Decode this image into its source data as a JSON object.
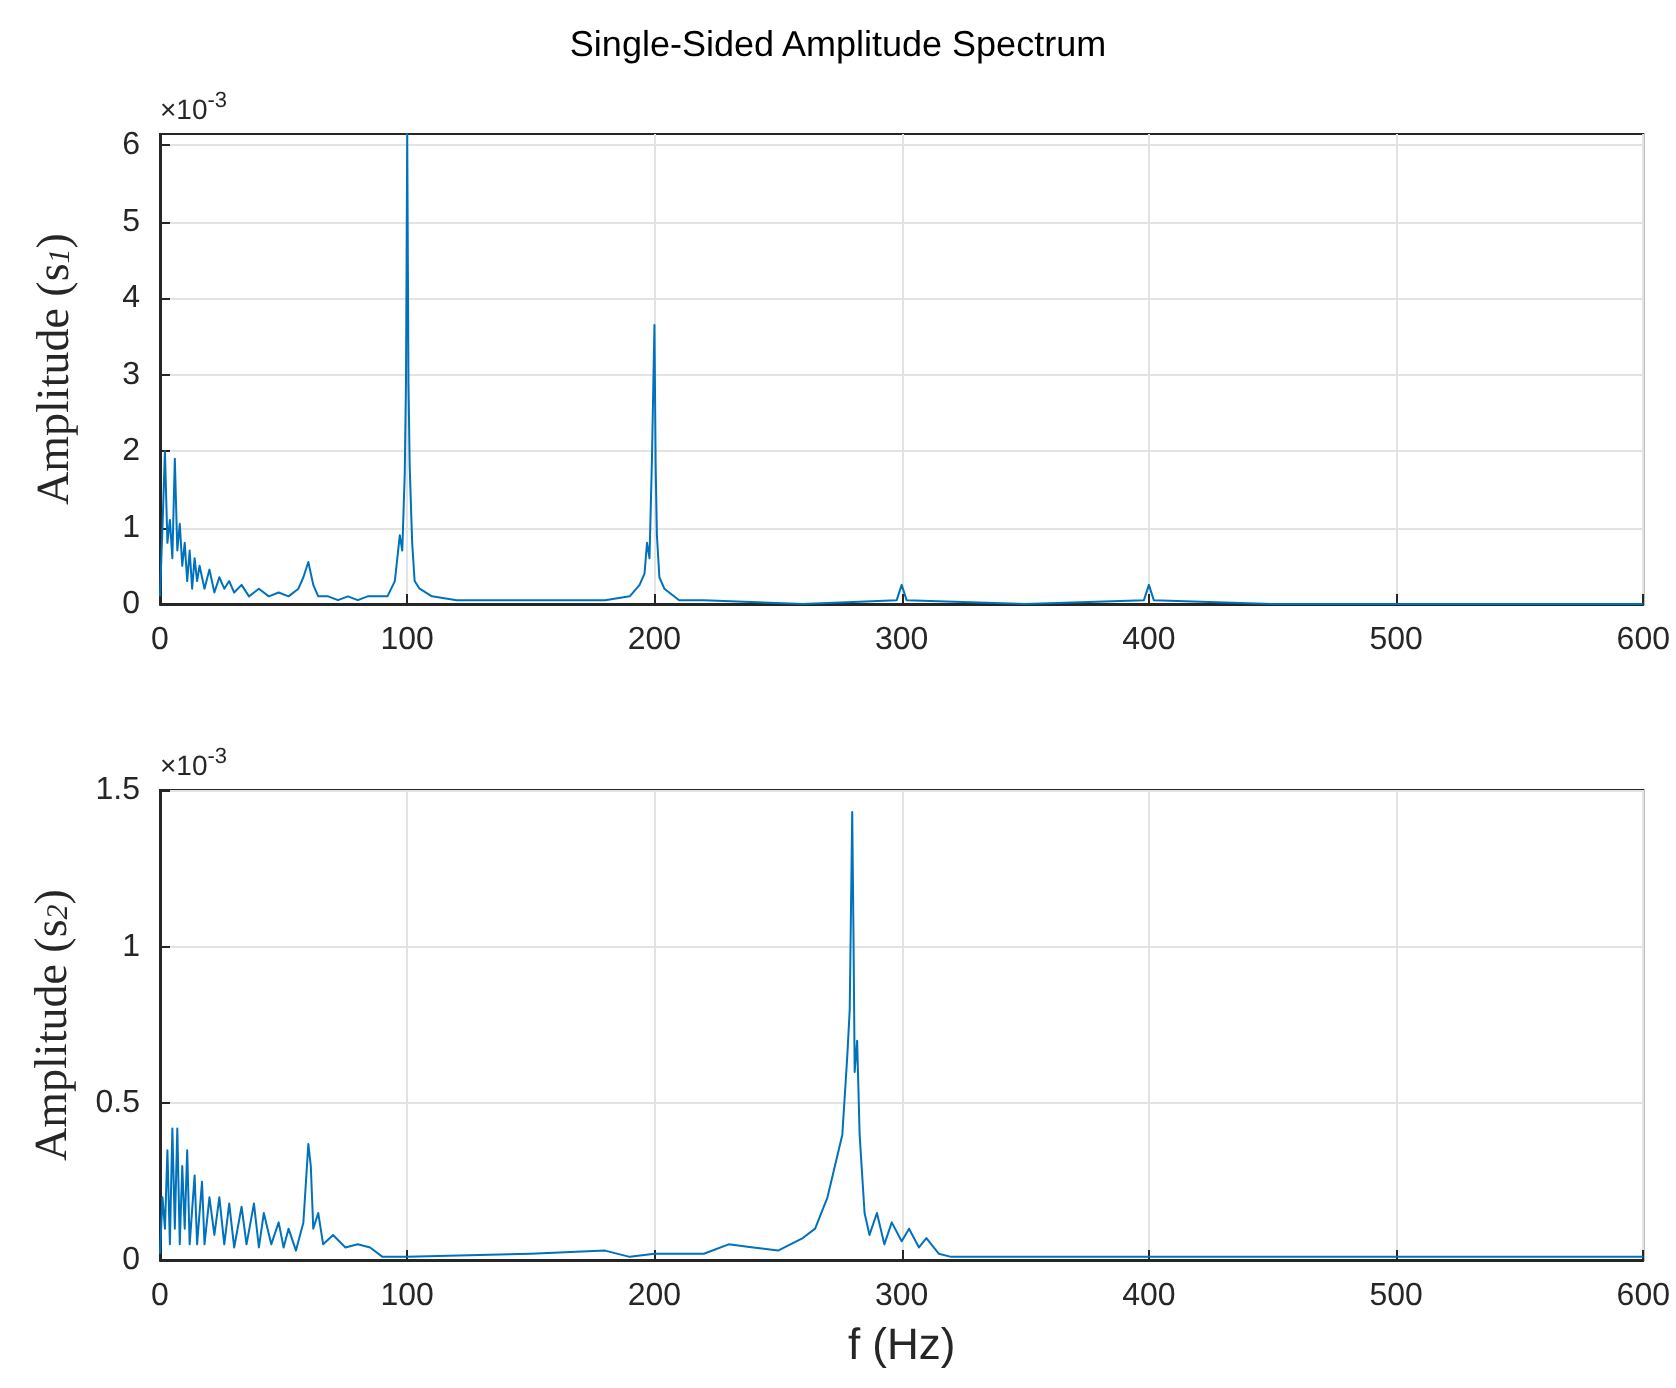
{
  "chart_data": [
    {
      "type": "line",
      "title": "Single-Sided Amplitude Spectrum",
      "ylabel": "Amplitude (s$_{1}$)",
      "annotations": [
        "×10$^{-3}$"
      ],
      "grid": true,
      "marker": "none",
      "line_style": "solid",
      "xlim": [
        0,
        600
      ],
      "xticks": [
        0,
        100,
        200,
        300,
        400,
        500,
        600
      ],
      "ylim": [
        0,
        6.15
      ],
      "yticks": [
        0,
        1,
        2,
        3,
        4,
        5,
        6
      ],
      "series": [
        {
          "color": "#0072bd",
          "x": [
            0,
            1,
            2,
            3,
            4,
            5,
            6,
            7,
            8,
            9,
            10,
            11,
            12,
            13,
            14,
            15,
            16,
            18,
            20,
            22,
            24,
            26,
            28,
            30,
            33,
            36,
            40,
            44,
            48,
            52,
            56,
            58,
            60,
            62,
            64,
            68,
            72,
            76,
            80,
            84,
            88,
            92,
            95,
            97,
            98,
            99,
            99.5,
            100,
            100.5,
            101,
            102,
            103,
            105,
            110,
            120,
            140,
            160,
            180,
            190,
            194,
            196,
            197,
            198,
            199,
            200,
            200.5,
            201,
            202,
            204,
            210,
            220,
            260,
            298,
            300,
            302,
            350,
            398,
            400,
            402,
            450,
            500,
            600
          ],
          "values": [
            0.1,
            1.0,
            2.0,
            0.8,
            1.1,
            0.6,
            1.9,
            0.7,
            1.05,
            0.5,
            0.8,
            0.3,
            0.7,
            0.2,
            0.6,
            0.3,
            0.5,
            0.2,
            0.45,
            0.15,
            0.35,
            0.2,
            0.3,
            0.15,
            0.25,
            0.1,
            0.2,
            0.1,
            0.15,
            0.1,
            0.2,
            0.35,
            0.55,
            0.25,
            0.1,
            0.1,
            0.05,
            0.1,
            0.05,
            0.1,
            0.1,
            0.1,
            0.3,
            0.9,
            0.7,
            1.7,
            2.9,
            6.15,
            2.9,
            1.8,
            0.8,
            0.3,
            0.2,
            0.1,
            0.05,
            0.05,
            0.05,
            0.05,
            0.1,
            0.25,
            0.4,
            0.8,
            0.6,
            1.9,
            3.65,
            1.8,
            0.9,
            0.35,
            0.2,
            0.05,
            0.05,
            0.0,
            0.05,
            0.25,
            0.05,
            0.0,
            0.05,
            0.25,
            0.05,
            0.0,
            0.0,
            0.0
          ]
        }
      ]
    },
    {
      "type": "line",
      "xlabel": "f (Hz)",
      "ylabel": "Amplitude (s$_{2}$)",
      "annotations": [
        "×10$^{-3}$"
      ],
      "grid": true,
      "marker": "none",
      "line_style": "solid",
      "xlim": [
        0,
        600
      ],
      "xticks": [
        0,
        100,
        200,
        300,
        400,
        500,
        600
      ],
      "ylim": [
        0,
        1.5
      ],
      "yticks": [
        0,
        0.5,
        1,
        1.5
      ],
      "series": [
        {
          "color": "#0072bd",
          "x": [
            0,
            1,
            2,
            3,
            4,
            5,
            6,
            7,
            8,
            9,
            10,
            11,
            12,
            14,
            15,
            17,
            18,
            20,
            22,
            24,
            26,
            28,
            30,
            33,
            35,
            38,
            40,
            42,
            45,
            48,
            50,
            52,
            55,
            58,
            60,
            61,
            62,
            64,
            66,
            70,
            75,
            80,
            85,
            90,
            100,
            150,
            180,
            190,
            200,
            220,
            230,
            240,
            250,
            260,
            265,
            270,
            273,
            276,
            278,
            279,
            280,
            280.5,
            281,
            282,
            283,
            285,
            287,
            290,
            293,
            296,
            300,
            303,
            307,
            310,
            315,
            320,
            400,
            500,
            560,
            600
          ],
          "values": [
            0.02,
            0.2,
            0.1,
            0.35,
            0.05,
            0.42,
            0.1,
            0.42,
            0.05,
            0.3,
            0.1,
            0.35,
            0.05,
            0.27,
            0.05,
            0.25,
            0.05,
            0.2,
            0.08,
            0.2,
            0.05,
            0.18,
            0.04,
            0.17,
            0.05,
            0.18,
            0.04,
            0.15,
            0.05,
            0.12,
            0.04,
            0.1,
            0.03,
            0.12,
            0.37,
            0.3,
            0.1,
            0.15,
            0.05,
            0.08,
            0.04,
            0.05,
            0.04,
            0.01,
            0.01,
            0.02,
            0.03,
            0.01,
            0.02,
            0.02,
            0.05,
            0.04,
            0.03,
            0.07,
            0.1,
            0.2,
            0.3,
            0.4,
            0.65,
            0.8,
            1.43,
            1.05,
            0.6,
            0.7,
            0.4,
            0.15,
            0.08,
            0.15,
            0.05,
            0.12,
            0.06,
            0.1,
            0.04,
            0.07,
            0.02,
            0.01,
            0.01,
            0.01,
            0.01,
            0.01
          ]
        }
      ]
    }
  ]
}
